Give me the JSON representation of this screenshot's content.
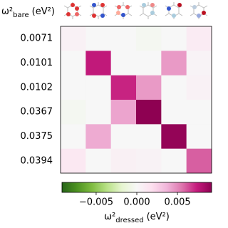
{
  "chart_data": {
    "type": "heatmap",
    "ylabel": [
      "ω²",
      "bare",
      "(eV²)"
    ],
    "y_categories": [
      "0.0071",
      "0.0101",
      "0.0102",
      "0.0367",
      "0.0375",
      "0.0394"
    ],
    "values": [
      [
        0.0005,
        0,
        0,
        -0.0003,
        0,
        0.001
      ],
      [
        0,
        0.0075,
        0,
        0,
        0.0045,
        0.0003
      ],
      [
        0,
        0,
        0.0072,
        0.0045,
        0,
        0.0005
      ],
      [
        -0.0003,
        0,
        0.0042,
        0.0092,
        0,
        0
      ],
      [
        0,
        0.004,
        0,
        0,
        0.009,
        0
      ],
      [
        0.0012,
        0,
        0.0006,
        0.0004,
        0,
        0.006
      ]
    ],
    "clim": [
      -0.0092,
      0.0092
    ],
    "colormap": [
      "#276419",
      "#4d9221",
      "#7fbc41",
      "#b8e186",
      "#e6f5d0",
      "#f7f7f7",
      "#fde0ef",
      "#f1b6da",
      "#de77ae",
      "#c51b7d",
      "#8e0152"
    ],
    "colorbar": {
      "ticks": [
        {
          "value": -0.005,
          "label": "−0.005"
        },
        {
          "value": 0,
          "label": "0.000"
        },
        {
          "value": 0.005,
          "label": "0.005"
        }
      ],
      "label": [
        "ω²",
        "dressed",
        "(eV²)"
      ]
    }
  }
}
